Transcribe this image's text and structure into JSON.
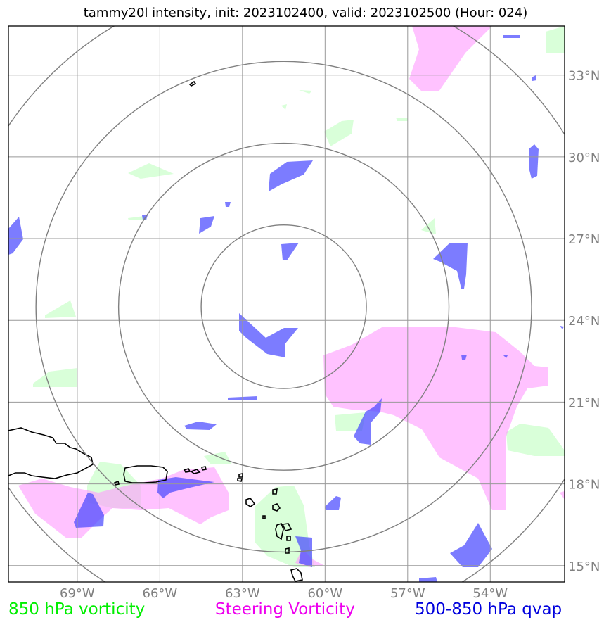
{
  "title": "tammy20l intensity, init: 2023102400, valid: 2023102500 (Hour: 024)",
  "map": {
    "lon_range": [
      -71.5,
      -51.3
    ],
    "lat_range": [
      14.4,
      34.8
    ],
    "lon_ticks": [
      -69,
      -66,
      -63,
      -60,
      -57,
      -54
    ],
    "lat_ticks": [
      15,
      18,
      21,
      24,
      27,
      30,
      33
    ],
    "lon_tick_labels": [
      "69°W",
      "66°W",
      "63°W",
      "60°W",
      "57°W",
      "54°W"
    ],
    "lat_tick_labels": [
      "15°N",
      "18°N",
      "21°N",
      "24°N",
      "27°N",
      "30°N",
      "33°N"
    ],
    "grid": true,
    "storm_center": {
      "lon": -61.5,
      "lat": 24.5
    },
    "range_rings_deg": [
      3,
      6,
      9,
      12
    ],
    "colors": {
      "vort850": "#ccffcc",
      "steering": "#ff99ff",
      "qvap": "#4444ff",
      "grid": "#999999",
      "rings": "#808080",
      "coast": "#000000"
    }
  },
  "legend": {
    "vort850": {
      "label": "850 hPa vorticity",
      "color": "#00ee00"
    },
    "steering": {
      "label": "Steering Vorticity",
      "color": "#ee00ee"
    },
    "qvap": {
      "label": "500-850 hPa qvap",
      "color": "#0000dd"
    }
  }
}
